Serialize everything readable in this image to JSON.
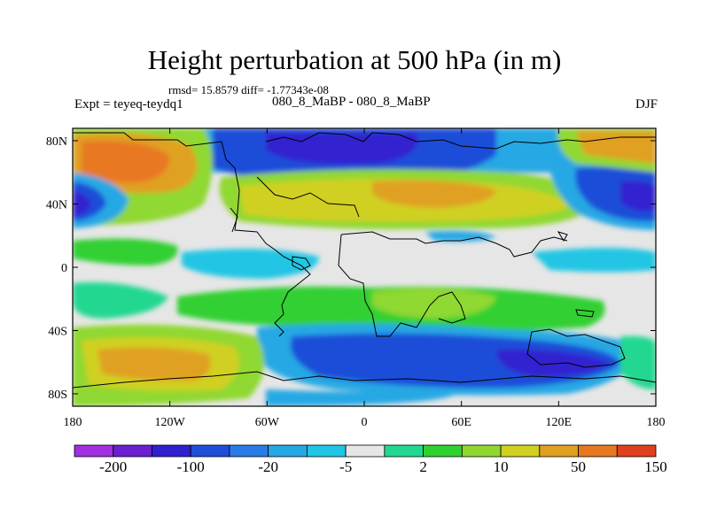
{
  "title": "Height perturbation at 500 hPa (in m)",
  "stats": "rmsd= 15.8579  diff= -1.77343e-08",
  "expt_label": "Expt = teyeq-teydq1",
  "subtitle": "080_8_MaBP - 080_8_MaBP",
  "season": "DJF",
  "y_axis": {
    "ticks": [
      "80N",
      "40N",
      "0",
      "40S",
      "80S"
    ],
    "values": [
      80,
      40,
      0,
      -40,
      -80
    ]
  },
  "x_axis": {
    "ticks": [
      "180",
      "120W",
      "60W",
      "0",
      "60E",
      "120E",
      "180"
    ],
    "values": [
      -180,
      -120,
      -60,
      0,
      60,
      120,
      180
    ]
  },
  "colorbar": {
    "colors": [
      "#a030e0",
      "#6a1fd0",
      "#3020d0",
      "#1f4ed8",
      "#2a7ae8",
      "#26a8e4",
      "#20c6e4",
      "#e6e6e6",
      "#20d890",
      "#30d030",
      "#90d830",
      "#d0d020",
      "#e0a020",
      "#e87820",
      "#e04020"
    ],
    "labels": [
      "-200",
      "-100",
      "-20",
      "-5",
      "2",
      "10",
      "50",
      "150"
    ]
  }
}
